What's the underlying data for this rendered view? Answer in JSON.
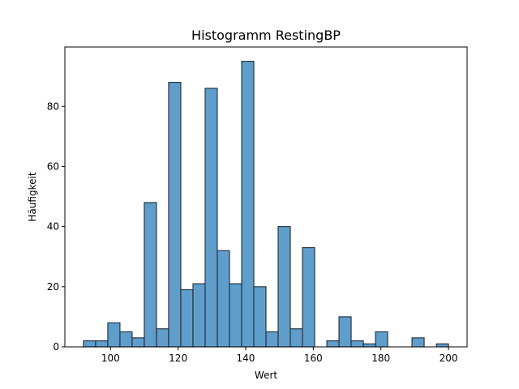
{
  "chart_data": {
    "type": "bar",
    "title": "Histogramm RestingBP",
    "xlabel": "Wert",
    "ylabel": "Häufigkeit",
    "xlim": [
      86.5,
      205.5
    ],
    "ylim": [
      0,
      99.75
    ],
    "xticks": [
      100,
      120,
      140,
      160,
      180,
      200
    ],
    "yticks": [
      0,
      20,
      40,
      60,
      80
    ],
    "bin_edges": [
      92,
      95.6,
      99.2,
      102.8,
      106.4,
      110,
      113.6,
      117.2,
      120.8,
      124.4,
      128,
      131.6,
      135.2,
      138.8,
      142.4,
      146,
      149.6,
      153.2,
      156.8,
      160.4,
      164,
      167.6,
      171.2,
      174.8,
      178.4,
      182,
      185.6,
      189.2,
      192.8,
      196.4,
      200
    ],
    "values": [
      2,
      2,
      8,
      5,
      3,
      48,
      6,
      88,
      19,
      21,
      86,
      32,
      21,
      95,
      20,
      5,
      40,
      6,
      33,
      0,
      2,
      10,
      2,
      1,
      5,
      0,
      0,
      3,
      0,
      1
    ],
    "grid": false,
    "colors": {
      "bar_fill": "#5f9ecb",
      "bar_edge": "#1f2a35"
    }
  }
}
